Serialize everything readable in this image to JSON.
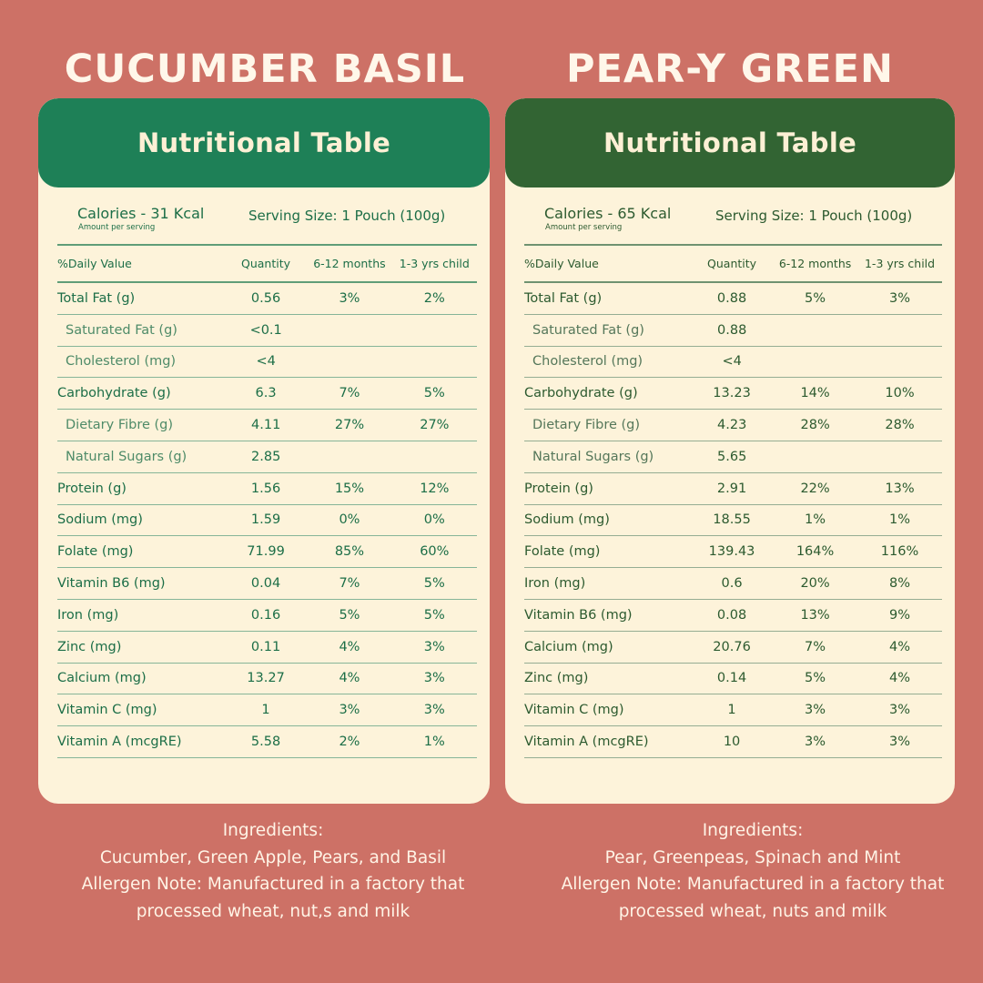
{
  "products": [
    {
      "title": "CUCUMBER BASIL",
      "table_title": "Nutritional Table",
      "calories": "Calories - 31 Kcal",
      "amount_per_serving": "Amount per serving",
      "serving_size": "Serving Size: 1 Pouch (100g)",
      "columns": [
        "%Daily Value",
        "Quantity",
        "6-12 months",
        "1-3 yrs child"
      ],
      "rows": [
        {
          "name": "Total Fat (g)",
          "qty": "0.56",
          "m": "3%",
          "y": "2%",
          "sub": false
        },
        {
          "name": "Saturated Fat (g)",
          "qty": "<0.1",
          "m": "",
          "y": "",
          "sub": true
        },
        {
          "name": "Cholesterol (mg)",
          "qty": "<4",
          "m": "",
          "y": "",
          "sub": true
        },
        {
          "name": "Carbohydrate (g)",
          "qty": "6.3",
          "m": "7%",
          "y": "5%",
          "sub": false
        },
        {
          "name": "Dietary Fibre (g)",
          "qty": "4.11",
          "m": "27%",
          "y": "27%",
          "sub": true
        },
        {
          "name": "Natural Sugars (g)",
          "qty": "2.85",
          "m": "",
          "y": "",
          "sub": true
        },
        {
          "name": "Protein (g)",
          "qty": "1.56",
          "m": "15%",
          "y": "12%",
          "sub": false
        },
        {
          "name": "Sodium (mg)",
          "qty": "1.59",
          "m": "0%",
          "y": "0%",
          "sub": false
        },
        {
          "name": "Folate (mg)",
          "qty": "71.99",
          "m": "85%",
          "y": "60%",
          "sub": false
        },
        {
          "name": "Vitamin B6 (mg)",
          "qty": "0.04",
          "m": "7%",
          "y": "5%",
          "sub": false
        },
        {
          "name": "Iron (mg)",
          "qty": "0.16",
          "m": "5%",
          "y": "5%",
          "sub": false
        },
        {
          "name": "Zinc (mg)",
          "qty": "0.11",
          "m": "4%",
          "y": "3%",
          "sub": false
        },
        {
          "name": "Calcium (mg)",
          "qty": "13.27",
          "m": "4%",
          "y": "3%",
          "sub": false
        },
        {
          "name": "Vitamin C (mg)",
          "qty": "1",
          "m": "3%",
          "y": "3%",
          "sub": false
        },
        {
          "name": "Vitamin A (mcgRE)",
          "qty": "5.58",
          "m": "2%",
          "y": "1%",
          "sub": false
        }
      ],
      "ingredients_heading": "Ingredients:",
      "ingredients": "Cucumber, Green Apple, Pears, and Basil",
      "allergen_line1": "Allergen Note: Manufactured in a factory that",
      "allergen_line2": "processed wheat, nut,s and milk"
    },
    {
      "title": "PEAR-Y GREEN",
      "table_title": "Nutritional Table",
      "calories": "Calories - 65 Kcal",
      "amount_per_serving": "Amount per serving",
      "serving_size": "Serving Size: 1 Pouch (100g)",
      "columns": [
        "%Daily Value",
        "Quantity",
        "6-12 months",
        "1-3 yrs child"
      ],
      "rows": [
        {
          "name": "Total Fat (g)",
          "qty": "0.88",
          "m": "5%",
          "y": "3%",
          "sub": false
        },
        {
          "name": "Saturated Fat (g)",
          "qty": "0.88",
          "m": "",
          "y": "",
          "sub": true
        },
        {
          "name": "Cholesterol (mg)",
          "qty": "<4",
          "m": "",
          "y": "",
          "sub": true
        },
        {
          "name": "Carbohydrate (g)",
          "qty": "13.23",
          "m": "14%",
          "y": "10%",
          "sub": false
        },
        {
          "name": "Dietary Fibre (g)",
          "qty": "4.23",
          "m": "28%",
          "y": "28%",
          "sub": true
        },
        {
          "name": "Natural Sugars (g)",
          "qty": "5.65",
          "m": "",
          "y": "",
          "sub": true
        },
        {
          "name": "Protein (g)",
          "qty": "2.91",
          "m": "22%",
          "y": "13%",
          "sub": false
        },
        {
          "name": "Sodium (mg)",
          "qty": "18.55",
          "m": "1%",
          "y": "1%",
          "sub": false
        },
        {
          "name": "Folate (mg)",
          "qty": "139.43",
          "m": "164%",
          "y": "116%",
          "sub": false
        },
        {
          "name": "Iron (mg)",
          "qty": "0.6",
          "m": "20%",
          "y": "8%",
          "sub": false
        },
        {
          "name": "Vitamin B6 (mg)",
          "qty": "0.08",
          "m": "13%",
          "y": "9%",
          "sub": false
        },
        {
          "name": "Calcium (mg)",
          "qty": "20.76",
          "m": "7%",
          "y": "4%",
          "sub": false
        },
        {
          "name": "Zinc (mg)",
          "qty": "0.14",
          "m": "5%",
          "y": "4%",
          "sub": false
        },
        {
          "name": "Vitamin C (mg)",
          "qty": "1",
          "m": "3%",
          "y": "3%",
          "sub": false
        },
        {
          "name": "Vitamin A (mcgRE)",
          "qty": "10",
          "m": "3%",
          "y": "3%",
          "sub": false
        }
      ],
      "ingredients_heading": "Ingredients:",
      "ingredients": "Pear, Greenpeas, Spinach and Mint",
      "allergen_line1": "Allergen Note: Manufactured in a factory that",
      "allergen_line2": "processed wheat, nuts and milk"
    }
  ]
}
